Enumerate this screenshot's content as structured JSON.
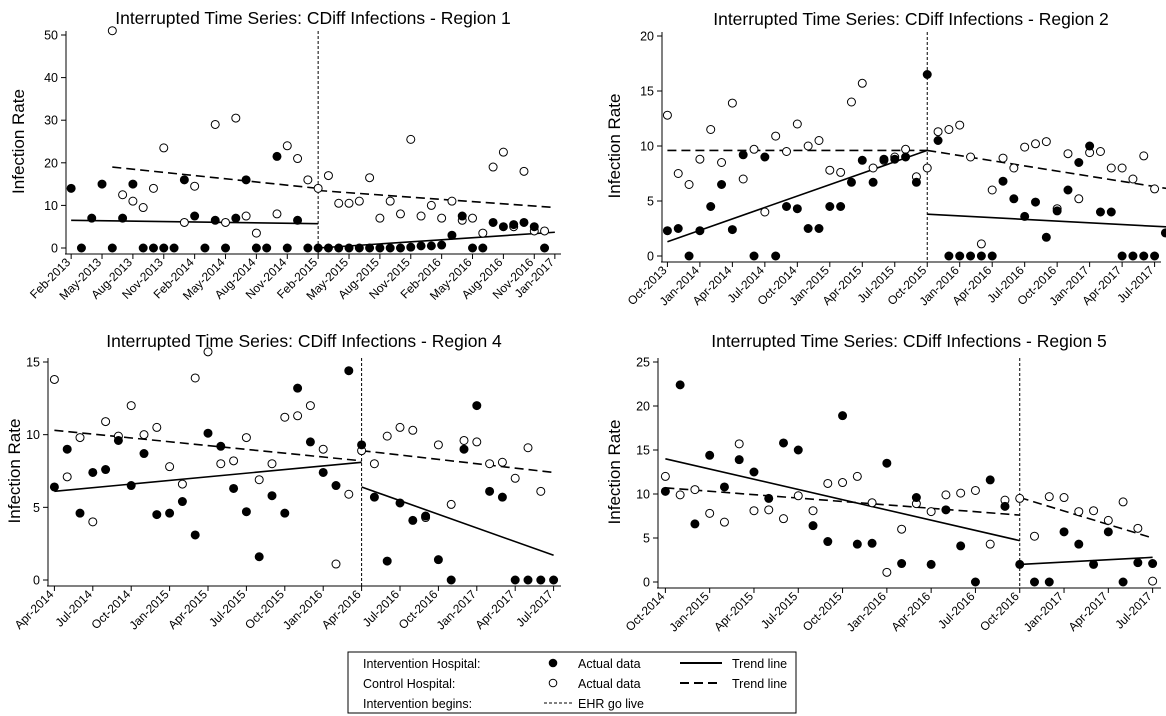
{
  "legend": {
    "rows": [
      {
        "label": "Intervention Hospital:",
        "marker_text": "Actual data",
        "line_text": "Trend line"
      },
      {
        "label": "Control Hospital:",
        "marker_text": "Actual data",
        "line_text": "Trend line"
      },
      {
        "label": "Intervention begins:",
        "marker_text": "EHR go live"
      }
    ]
  },
  "chart_data": [
    {
      "type": "scatter",
      "title": "Interrupted Time Series: CDiff Infections - Region 1",
      "ylabel": "Infection Rate",
      "xlabel": "",
      "x_ticks": [
        "Feb-2013",
        "May-2013",
        "Aug-2013",
        "Nov-2013",
        "Feb-2014",
        "May-2014",
        "Aug-2014",
        "Nov-2014",
        "Feb-2015",
        "May-2015",
        "Aug-2015",
        "Nov-2015",
        "Feb-2016",
        "May-2016",
        "Aug-2016",
        "Nov-2016",
        "Jan-2017"
      ],
      "x_start": "Feb-2013",
      "intervention": "Feb-2015",
      "ylim": [
        0,
        50
      ],
      "yticks": [
        0,
        10,
        20,
        30,
        40,
        50
      ],
      "series": [
        {
          "name": "Intervention Hospital",
          "style": "filled",
          "values": [
            14,
            0,
            7,
            15,
            0,
            7,
            15,
            0,
            0,
            0,
            0,
            16,
            7.5,
            0,
            6.5,
            0,
            7,
            16,
            0,
            0,
            21.5,
            0,
            6.5,
            0,
            0,
            0,
            0,
            0,
            0,
            0,
            0,
            0,
            0,
            0.2,
            0.5,
            0.5,
            0.7,
            3,
            7.5,
            0,
            0,
            6,
            5,
            5.5,
            6,
            5,
            0
          ]
        },
        {
          "name": "Control Hospital",
          "style": "open",
          "values": [
            null,
            null,
            null,
            null,
            51,
            12.5,
            11,
            9.5,
            14,
            23.5,
            null,
            6,
            14.5,
            null,
            29,
            6,
            30.5,
            7.5,
            3.5,
            null,
            8,
            24,
            21,
            16,
            14,
            17,
            10.5,
            10.5,
            11,
            16.5,
            7,
            11,
            8,
            25.5,
            7.5,
            10,
            7,
            11,
            6.5,
            7,
            3.5,
            19,
            22.5,
            5,
            18,
            4,
            4
          ]
        }
      ],
      "trends": [
        {
          "name": "Intervention Hospital",
          "style": "solid",
          "segments": [
            {
              "from": 0,
              "to": 24,
              "y0": 6.5,
              "y1": 5.7
            },
            {
              "from": 24,
              "to": 47,
              "y0": 0,
              "y1": 3.7
            }
          ]
        },
        {
          "name": "Control Hospital",
          "style": "dashed",
          "segments": [
            {
              "from": 4,
              "to": 24,
              "y0": 19,
              "y1": 14
            },
            {
              "from": 24,
              "to": 47,
              "y0": 13.5,
              "y1": 9.5
            }
          ]
        }
      ]
    },
    {
      "type": "scatter",
      "title": "Interrupted Time Series: CDiff Infections - Region 2",
      "ylabel": "Infection Rate",
      "xlabel": "",
      "x_ticks": [
        "Oct-2013",
        "Jan-2014",
        "Apr-2014",
        "Jul-2014",
        "Oct-2014",
        "Jan-2015",
        "Apr-2015",
        "Jul-2015",
        "Oct-2015",
        "Jan-2016",
        "Apr-2016",
        "Jul-2016",
        "Oct-2016",
        "Jan-2017",
        "Apr-2017",
        "Jul-2017"
      ],
      "x_start": "Oct-2013",
      "intervention": "Oct-2015",
      "ylim": [
        0,
        20
      ],
      "yticks": [
        0,
        5,
        10,
        15,
        20
      ],
      "series": [
        {
          "name": "Intervention Hospital",
          "style": "filled",
          "values": [
            2.3,
            2.5,
            0,
            2.3,
            4.5,
            6.5,
            2.4,
            9.2,
            0,
            9,
            0,
            4.5,
            4.3,
            2.5,
            2.5,
            4.5,
            4.5,
            6.7,
            8.7,
            6.7,
            8.8,
            8.8,
            9,
            6.7,
            16.5,
            10.5,
            0,
            0,
            0,
            0,
            0,
            6.8,
            5.2,
            3.6,
            4.9,
            1.7,
            4.1,
            6,
            8.5,
            10,
            4,
            4,
            0,
            0,
            0,
            0,
            2.1,
            0
          ]
        },
        {
          "name": "Control Hospital",
          "style": "open",
          "values": [
            12.8,
            7.5,
            6.5,
            8.8,
            11.5,
            8.5,
            13.9,
            7,
            9.7,
            4,
            10.9,
            9.5,
            12,
            10,
            10.5,
            7.8,
            7.6,
            14,
            15.7,
            8,
            8.7,
            9,
            9.7,
            7.2,
            8,
            11.3,
            11.5,
            11.9,
            9,
            1.1,
            6,
            8.9,
            8,
            9.9,
            10.2,
            10.4,
            4.3,
            9.3,
            5.2,
            9.4,
            9.5,
            8,
            8,
            7,
            9.1,
            6.1,
            null,
            null
          ]
        }
      ],
      "trends": [
        {
          "name": "Intervention Hospital",
          "style": "solid",
          "segments": [
            {
              "from": 0,
              "to": 24,
              "y0": 1.3,
              "y1": 9.6
            },
            {
              "from": 24,
              "to": 47,
              "y0": 3.8,
              "y1": 2.6
            }
          ]
        },
        {
          "name": "Control Hospital",
          "style": "dashed",
          "segments": [
            {
              "from": 0,
              "to": 24,
              "y0": 9.6,
              "y1": 9.6
            },
            {
              "from": 24,
              "to": 47,
              "y0": 9.6,
              "y1": 6
            }
          ]
        }
      ]
    },
    {
      "type": "scatter",
      "title": "Interrupted Time Series: CDiff Infections - Region 4",
      "ylabel": "Infection Rate",
      "xlabel": "",
      "x_ticks": [
        "Apr-2014",
        "Jul-2014",
        "Oct-2014",
        "Jan-2015",
        "Apr-2015",
        "Jul-2015",
        "Oct-2015",
        "Jan-2016",
        "Apr-2016",
        "Jul-2016",
        "Oct-2016",
        "Jan-2017",
        "Apr-2017",
        "Jul-2017"
      ],
      "x_start": "Apr-2014",
      "intervention": "Apr-2016",
      "ylim": [
        0,
        15
      ],
      "yticks": [
        0,
        5,
        10,
        15
      ],
      "series": [
        {
          "name": "Intervention Hospital",
          "style": "filled",
          "values": [
            6.4,
            9,
            4.6,
            7.4,
            7.6,
            9.6,
            6.5,
            8.7,
            4.5,
            4.6,
            5.4,
            3.1,
            10.1,
            9.2,
            6.3,
            4.7,
            1.6,
            5.8,
            4.6,
            13.2,
            9.5,
            7.4,
            6.5,
            14.4,
            9.3,
            5.7,
            1.3,
            5.3,
            4.1,
            4.4,
            1.4,
            0,
            9,
            12,
            6.1,
            5.7,
            0,
            0,
            0,
            0
          ]
        },
        {
          "name": "Control Hospital",
          "style": "open",
          "values": [
            13.8,
            7.1,
            9.8,
            4,
            10.9,
            9.9,
            12,
            10,
            10.5,
            7.8,
            6.6,
            13.9,
            15.7,
            8,
            8.2,
            9.8,
            6.9,
            8,
            11.2,
            11.3,
            12,
            9,
            1.1,
            5.9,
            8.9,
            8,
            9.9,
            10.5,
            10.3,
            4.3,
            9.3,
            5.2,
            9.6,
            9.5,
            8,
            8.1,
            7,
            9.1,
            6.1,
            null
          ]
        }
      ],
      "trends": [
        {
          "name": "Intervention Hospital",
          "style": "solid",
          "segments": [
            {
              "from": 0,
              "to": 24,
              "y0": 6.1,
              "y1": 8.1
            },
            {
              "from": 24,
              "to": 39,
              "y0": 6.4,
              "y1": 1.7
            }
          ]
        },
        {
          "name": "Control Hospital",
          "style": "dashed",
          "segments": [
            {
              "from": 0,
              "to": 24,
              "y0": 10.3,
              "y1": 8.2
            },
            {
              "from": 24,
              "to": 39,
              "y0": 8.9,
              "y1": 7.4
            }
          ]
        }
      ]
    },
    {
      "type": "scatter",
      "title": "Interrupted Time Series: CDiff Infections - Region 5",
      "ylabel": "Infection Rate",
      "xlabel": "",
      "x_ticks": [
        "Oct-2014",
        "Jan-2015",
        "Apr-2015",
        "Jul-2015",
        "Oct-2015",
        "Jan-2016",
        "Apr-2016",
        "Jul-2016",
        "Oct-2016",
        "Jan-2017",
        "Apr-2017",
        "Jul-2017"
      ],
      "x_start": "Oct-2014",
      "intervention": "Oct-2016",
      "ylim": [
        0,
        25
      ],
      "yticks": [
        0,
        5,
        10,
        15,
        20,
        25
      ],
      "series": [
        {
          "name": "Intervention Hospital",
          "style": "filled",
          "values": [
            10.3,
            22.4,
            6.6,
            14.4,
            10.8,
            13.9,
            12.5,
            9.5,
            15.8,
            15,
            6.4,
            4.6,
            18.9,
            4.3,
            4.4,
            13.5,
            2.1,
            9.6,
            2,
            8.2,
            4.1,
            0,
            11.6,
            8.6,
            2,
            0,
            0,
            5.7,
            4.3,
            2,
            5.7,
            0,
            2.2,
            2.1
          ]
        },
        {
          "name": "Control Hospital",
          "style": "open",
          "values": [
            12,
            9.9,
            10.5,
            7.8,
            6.8,
            15.7,
            8.1,
            8.2,
            7.2,
            9.8,
            8.1,
            11.2,
            11.3,
            12,
            9,
            1.1,
            6,
            8.9,
            8,
            9.9,
            10.1,
            10.4,
            4.3,
            9.3,
            9.5,
            5.2,
            9.7,
            9.6,
            8,
            8.1,
            7,
            9.1,
            6.1,
            0.1
          ]
        }
      ],
      "trends": [
        {
          "name": "Intervention Hospital",
          "style": "solid",
          "segments": [
            {
              "from": 0,
              "to": 24,
              "y0": 14,
              "y1": 4.7
            },
            {
              "from": 24,
              "to": 33,
              "y0": 2,
              "y1": 2.8
            }
          ]
        },
        {
          "name": "Control Hospital",
          "style": "dashed",
          "segments": [
            {
              "from": 0,
              "to": 24,
              "y0": 10.7,
              "y1": 7.6
            },
            {
              "from": 24,
              "to": 33,
              "y0": 9.6,
              "y1": 5
            }
          ]
        }
      ]
    }
  ]
}
